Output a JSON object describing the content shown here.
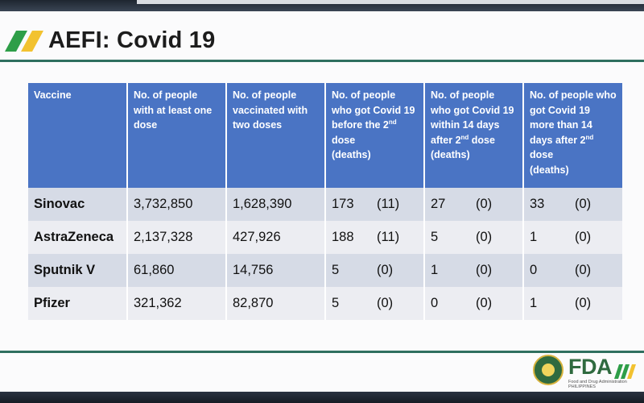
{
  "title": "AEFI: Covid 19",
  "colors": {
    "header_bg": "#4a74c4",
    "row_odd": "#d6dbe6",
    "row_even": "#ecedf2",
    "accent_green": "#2f6f5f",
    "logo_green": "#2e9e48",
    "logo_yellow": "#f2c230"
  },
  "table": {
    "headers": [
      {
        "line1": "Vaccine"
      },
      {
        "line1": "No. of people with at least one dose"
      },
      {
        "line1": "No. of people vaccinated with two doses"
      },
      {
        "line1": "No. of people who got Covid 19 before the 2",
        "sup": "nd",
        "line2": " dose",
        "line3": "(deaths)"
      },
      {
        "line1": "No. of people who got Covid 19 within 14 days after 2",
        "sup": "nd",
        "line2": " dose",
        "line3": "(deaths)"
      },
      {
        "line1": "No. of people who got Covid 19  more than 14 days after 2",
        "sup": "nd",
        "line2": " dose",
        "line3": "(deaths)"
      }
    ],
    "rows": [
      {
        "vaccine": "Sinovac",
        "one_dose": "3,732,850",
        "two_doses": "1,628,390",
        "before": {
          "n": "173",
          "d": "(11)"
        },
        "within": {
          "n": "27",
          "d": "(0)"
        },
        "after": {
          "n": "33",
          "d": "(0)"
        }
      },
      {
        "vaccine": "AstraZeneca",
        "one_dose": "2,137,328",
        "two_doses": "427,926",
        "before": {
          "n": "188",
          "d": "(11)"
        },
        "within": {
          "n": "5",
          "d": "(0)"
        },
        "after": {
          "n": "1",
          "d": "(0)"
        }
      },
      {
        "vaccine": "Sputnik V",
        "one_dose": "61,860",
        "two_doses": "14,756",
        "before": {
          "n": "5",
          "d": "(0)"
        },
        "within": {
          "n": "1",
          "d": "(0)"
        },
        "after": {
          "n": "0",
          "d": "(0)"
        }
      },
      {
        "vaccine": "Pfizer",
        "one_dose": "321,362",
        "two_doses": "82,870",
        "before": {
          "n": "5",
          "d": "(0)"
        },
        "within": {
          "n": "0",
          "d": "(0)"
        },
        "after": {
          "n": "1",
          "d": "(0)"
        }
      }
    ]
  },
  "footer_logo": {
    "text": "FDA",
    "subtitle": "Food and Drug Administration PHILIPPINES"
  }
}
